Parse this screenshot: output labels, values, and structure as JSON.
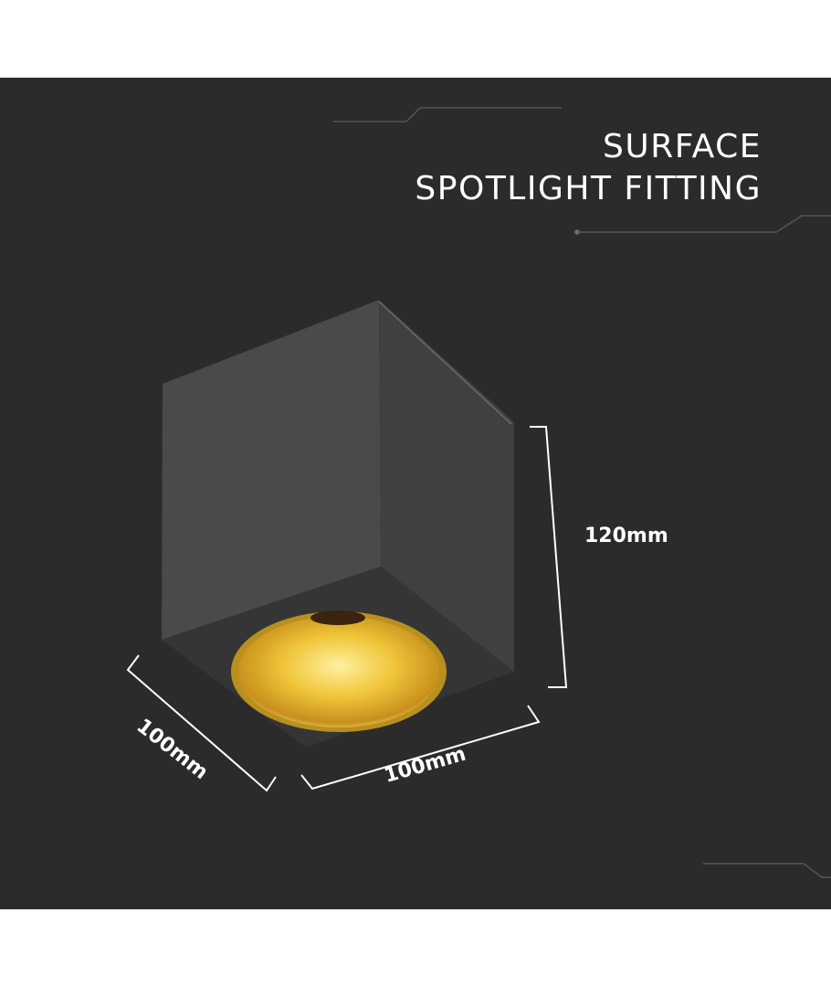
{
  "title": {
    "line1": "SURFACE",
    "line2": "SPOTLIGHT FITTING"
  },
  "dimensions": {
    "height": "120mm",
    "width": "100mm",
    "depth": "100mm"
  },
  "colors": {
    "background": "#2b2b2b",
    "housing": "#4a4a4a",
    "reflector": "#e8b830"
  }
}
